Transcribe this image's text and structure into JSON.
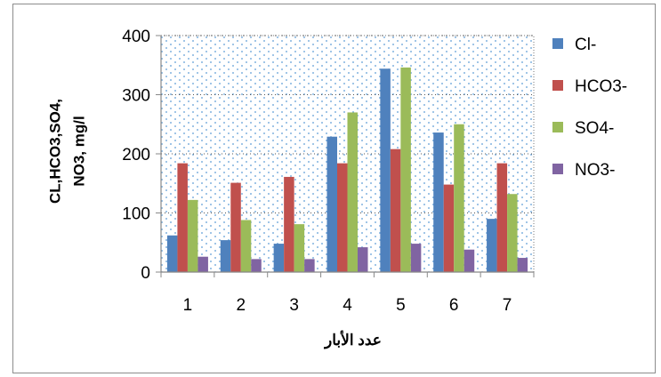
{
  "chart_data": {
    "type": "bar",
    "categories": [
      "1",
      "2",
      "3",
      "4",
      "5",
      "6",
      "7"
    ],
    "series": [
      {
        "name": "Cl-",
        "color": "#4f81bd",
        "values": [
          62,
          54,
          48,
          229,
          344,
          236,
          90
        ]
      },
      {
        "name": "HCO3-",
        "color": "#c0504d",
        "values": [
          184,
          151,
          161,
          184,
          208,
          148,
          184
        ]
      },
      {
        "name": "SO4-",
        "color": "#9bbb59",
        "values": [
          122,
          88,
          81,
          270,
          346,
          250,
          132
        ]
      },
      {
        "name": "NO3-",
        "color": "#8064a2",
        "values": [
          26,
          22,
          22,
          42,
          48,
          38,
          24
        ]
      }
    ],
    "yticks": [
      "0",
      "100",
      "200",
      "300",
      "400"
    ],
    "ylim": [
      0,
      400
    ],
    "xlabel": "عدد الأبار",
    "ylabel_lines": [
      "CL,HCO3,SO4,",
      "NO3, mg/l"
    ],
    "grid": "dotted",
    "legend_position": "right"
  }
}
